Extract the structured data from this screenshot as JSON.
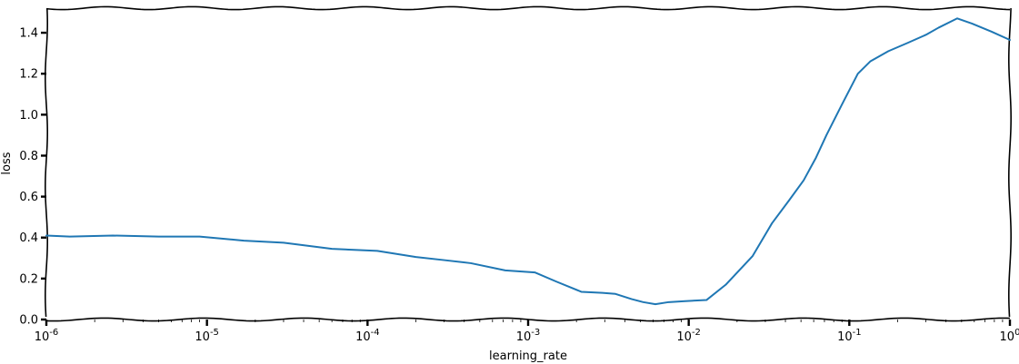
{
  "chart_data": {
    "type": "line",
    "xlabel": "learning_rate",
    "ylabel": "loss",
    "xscale": "log",
    "xlim": [
      1e-06,
      1
    ],
    "ylim": [
      0,
      1.52
    ],
    "grid": false,
    "line_color": "#1f77b4",
    "x_ticks": [
      {
        "value": 1e-06,
        "base": "10",
        "exp": "-6"
      },
      {
        "value": 1e-05,
        "base": "10",
        "exp": "-5"
      },
      {
        "value": 0.0001,
        "base": "10",
        "exp": "-4"
      },
      {
        "value": 0.001,
        "base": "10",
        "exp": "-3"
      },
      {
        "value": 0.01,
        "base": "10",
        "exp": "-2"
      },
      {
        "value": 0.1,
        "base": "10",
        "exp": "-1"
      },
      {
        "value": 1,
        "base": "10",
        "exp": "0"
      }
    ],
    "y_ticks": [
      {
        "value": 0.0,
        "label": "0.0"
      },
      {
        "value": 0.2,
        "label": "0.2"
      },
      {
        "value": 0.4,
        "label": "0.4"
      },
      {
        "value": 0.6,
        "label": "0.6"
      },
      {
        "value": 0.8,
        "label": "0.8"
      },
      {
        "value": 1.0,
        "label": "1.0"
      },
      {
        "value": 1.2,
        "label": "1.2"
      },
      {
        "value": 1.4,
        "label": "1.4"
      }
    ],
    "series": [
      {
        "x": [
          1e-06,
          1.4e-06,
          2.6e-06,
          5e-06,
          9e-06,
          1.7e-05,
          3e-05,
          6e-05,
          0.000115,
          0.0002,
          0.0003,
          0.00044,
          0.00072,
          0.0011,
          0.0015,
          0.00215,
          0.0029,
          0.0035,
          0.0044,
          0.0052,
          0.0062,
          0.0075,
          0.0095,
          0.0129,
          0.017,
          0.025,
          0.033,
          0.042,
          0.052,
          0.062,
          0.072,
          0.09,
          0.113,
          0.135,
          0.175,
          0.23,
          0.3,
          0.36,
          0.47,
          0.58,
          0.77,
          1.0
        ],
        "y": [
          0.41,
          0.405,
          0.41,
          0.405,
          0.405,
          0.385,
          0.375,
          0.345,
          0.335,
          0.305,
          0.29,
          0.275,
          0.24,
          0.23,
          0.185,
          0.135,
          0.13,
          0.125,
          0.1,
          0.085,
          0.075,
          0.085,
          0.09,
          0.095,
          0.17,
          0.31,
          0.47,
          0.58,
          0.68,
          0.79,
          0.9,
          1.05,
          1.2,
          1.26,
          1.31,
          1.35,
          1.39,
          1.425,
          1.47,
          1.445,
          1.405,
          1.365
        ]
      }
    ]
  }
}
